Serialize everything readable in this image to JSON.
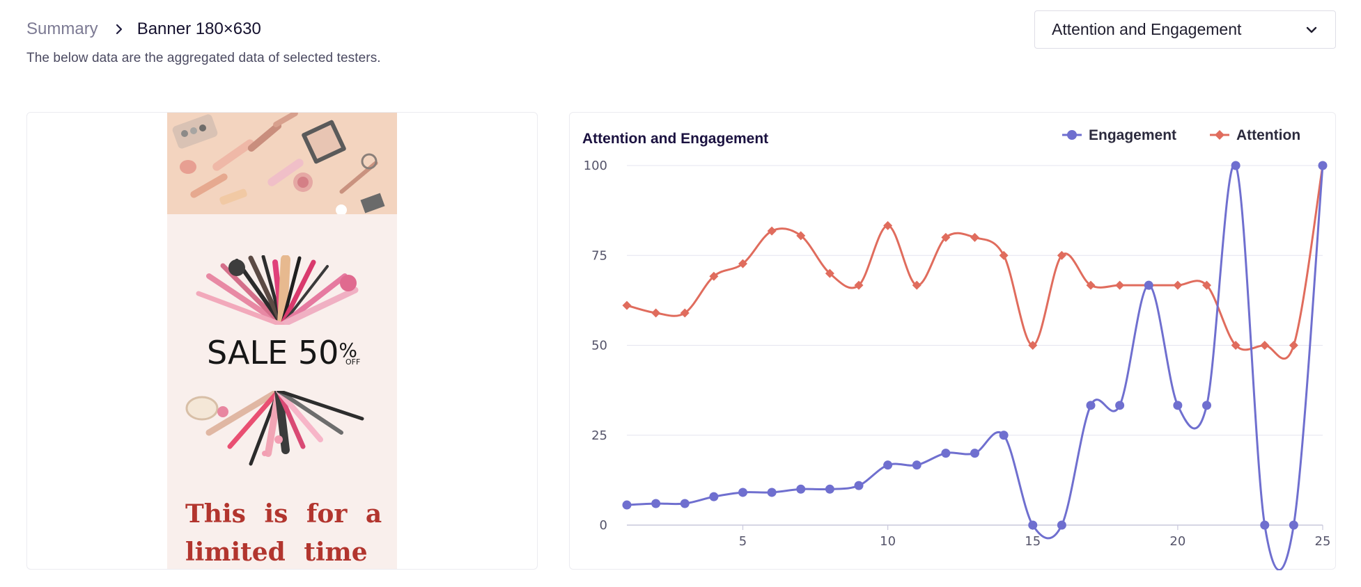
{
  "breadcrumb": {
    "parent": "Summary",
    "current": "Banner 180×630"
  },
  "subtitle": "The below data are the aggregated data of selected testers.",
  "metric_select": {
    "selected": "Attention and Engagement"
  },
  "banner": {
    "sale_text": "SALE 50",
    "sale_percent": "%",
    "sale_off": "OFF",
    "tagline": "This is for a limited time"
  },
  "colors": {
    "engagement": "#6f6fcf",
    "attention": "#e06c5d",
    "banner_red": "#b2352e",
    "accent_dark": "#1b1240"
  },
  "chart_data": {
    "type": "line",
    "title": "Attention and Engagement",
    "x": [
      1,
      2,
      3,
      4,
      5,
      6,
      7,
      8,
      9,
      10,
      11,
      12,
      13,
      14,
      15,
      16,
      17,
      18,
      19,
      20,
      21,
      22,
      23,
      24,
      25
    ],
    "xticks": [
      5,
      10,
      15,
      20,
      25
    ],
    "yticks": [
      0,
      25,
      50,
      75,
      100
    ],
    "xlim": [
      1,
      25
    ],
    "ylim": [
      0,
      100
    ],
    "grid": true,
    "legend_position": "top-right",
    "series": [
      {
        "name": "Engagement",
        "marker": "circle",
        "values": [
          5.6,
          6,
          6,
          7.9,
          9.1,
          9.1,
          10,
          10,
          11,
          16.7,
          16.7,
          20,
          20,
          25,
          0,
          0,
          33.3,
          33.3,
          66.7,
          33.3,
          33.3,
          100,
          0,
          0,
          100
        ]
      },
      {
        "name": "Attention",
        "marker": "diamond",
        "values": [
          61.1,
          59,
          59,
          69.2,
          72.7,
          81.8,
          80.5,
          70,
          66.7,
          83.3,
          66.7,
          80,
          80,
          75,
          50,
          75,
          66.7,
          66.7,
          66.7,
          66.7,
          66.7,
          50,
          50,
          50,
          100
        ]
      }
    ]
  }
}
